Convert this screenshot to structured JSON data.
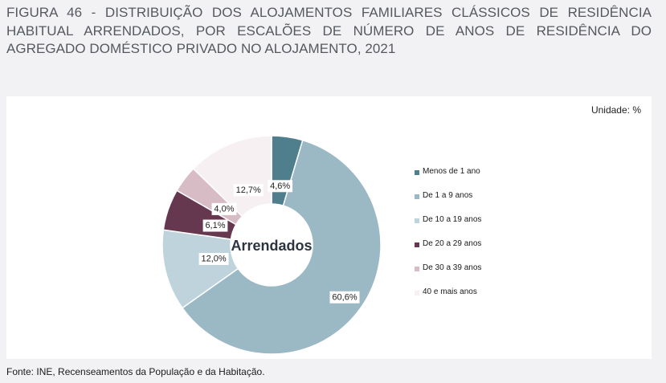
{
  "figure": {
    "title": "FIGURA 46 - DISTRIBUIÇÃO DOS ALOJAMENTOS FAMILIARES CLÁSSICOS DE RESIDÊNCIA HABITUAL ARRENDADOS, POR ESCALÕES DE NÚMERO DE ANOS DE RESIDÊNCIA DO AGREGADO DOMÉSTICO PRIVADO NO ALOJAMENTO, 2021",
    "unit": "Unidade: %",
    "source": "Fonte: INE, Recenseamentos da População e da Habitação."
  },
  "chart_data": {
    "type": "pie",
    "variant": "donut",
    "center_label": "Arrendados",
    "unit": "%",
    "legend_position": "right",
    "slices": [
      {
        "label": "Menos de 1 ano",
        "value": 4.6,
        "display": "4,6%",
        "color": "#4f7f8c"
      },
      {
        "label": "De 1 a 9 anos",
        "value": 60.6,
        "display": "60,6%",
        "color": "#9bb8c5"
      },
      {
        "label": "De 10 a 19 anos",
        "value": 12.0,
        "display": "12,0%",
        "color": "#bed3db"
      },
      {
        "label": "De 20 a 29 anos",
        "value": 6.1,
        "display": "6,1%",
        "color": "#66384f"
      },
      {
        "label": "De 30 a 39 anos",
        "value": 4.0,
        "display": "4,0%",
        "color": "#d7bcc5"
      },
      {
        "label": "40 e mais anos",
        "value": 12.7,
        "display": "12,7%",
        "color": "#f6f0f3"
      }
    ]
  }
}
